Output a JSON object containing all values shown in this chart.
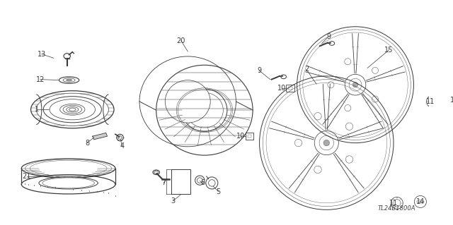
{
  "background_color": "#ffffff",
  "image_code": "TL24B1800A",
  "fig_w": 6.4,
  "fig_h": 3.19,
  "dpi": 100
}
